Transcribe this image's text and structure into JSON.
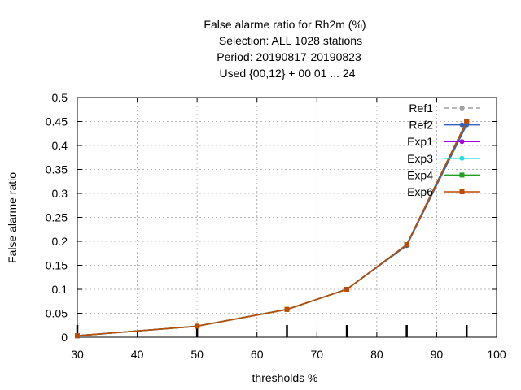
{
  "chart_data": {
    "type": "line",
    "title_lines": [
      "False alarme ratio  for Rh2m (%)",
      "Selection: ALL   1028 stations",
      "Period: 20190817-20190823",
      "Used {00,12} + 00 01 ... 24"
    ],
    "xlabel": "thresholds %",
    "ylabel": "False alarme ratio",
    "xlim": [
      30,
      100
    ],
    "ylim": [
      0,
      0.5
    ],
    "x_ticks": [
      30,
      40,
      50,
      60,
      70,
      80,
      90,
      100
    ],
    "y_ticks": [
      0,
      0.05,
      0.1,
      0.15,
      0.2,
      0.25,
      0.3,
      0.35,
      0.4,
      0.45,
      0.5
    ],
    "y_tick_labels": [
      "0",
      "0.05",
      "0.1",
      "0.15",
      "0.2",
      "0.25",
      "0.3",
      "0.35",
      "0.4",
      "0.45",
      "0.5"
    ],
    "grid": true,
    "legend_position": "top-right",
    "x": [
      30,
      50,
      65,
      75,
      85,
      95
    ],
    "series": [
      {
        "name": "Ref1",
        "color": "#a0a0a0",
        "dashed": true,
        "marker": "circle",
        "values": [
          0.003,
          0.023,
          0.058,
          0.1,
          0.193,
          0.45
        ]
      },
      {
        "name": "Ref2",
        "color": "#3060c0",
        "dashed": false,
        "marker": "circle",
        "values": [
          0.003,
          0.023,
          0.058,
          0.1,
          0.191,
          0.443
        ]
      },
      {
        "name": "Exp1",
        "color": "#a000e0",
        "dashed": false,
        "marker": "circle",
        "values": [
          0.003,
          0.023,
          0.058,
          0.1,
          0.193,
          0.45
        ]
      },
      {
        "name": "Exp3",
        "color": "#20e0e0",
        "dashed": false,
        "marker": "circle",
        "values": [
          0.003,
          0.023,
          0.058,
          0.1,
          0.193,
          0.45
        ]
      },
      {
        "name": "Exp4",
        "color": "#20a020",
        "dashed": false,
        "marker": "square",
        "values": [
          0.003,
          0.023,
          0.058,
          0.1,
          0.193,
          0.45
        ]
      },
      {
        "name": "Exp6",
        "color": "#c04a00",
        "dashed": false,
        "marker": "square",
        "values": [
          0.003,
          0.023,
          0.058,
          0.1,
          0.193,
          0.45
        ]
      }
    ]
  }
}
